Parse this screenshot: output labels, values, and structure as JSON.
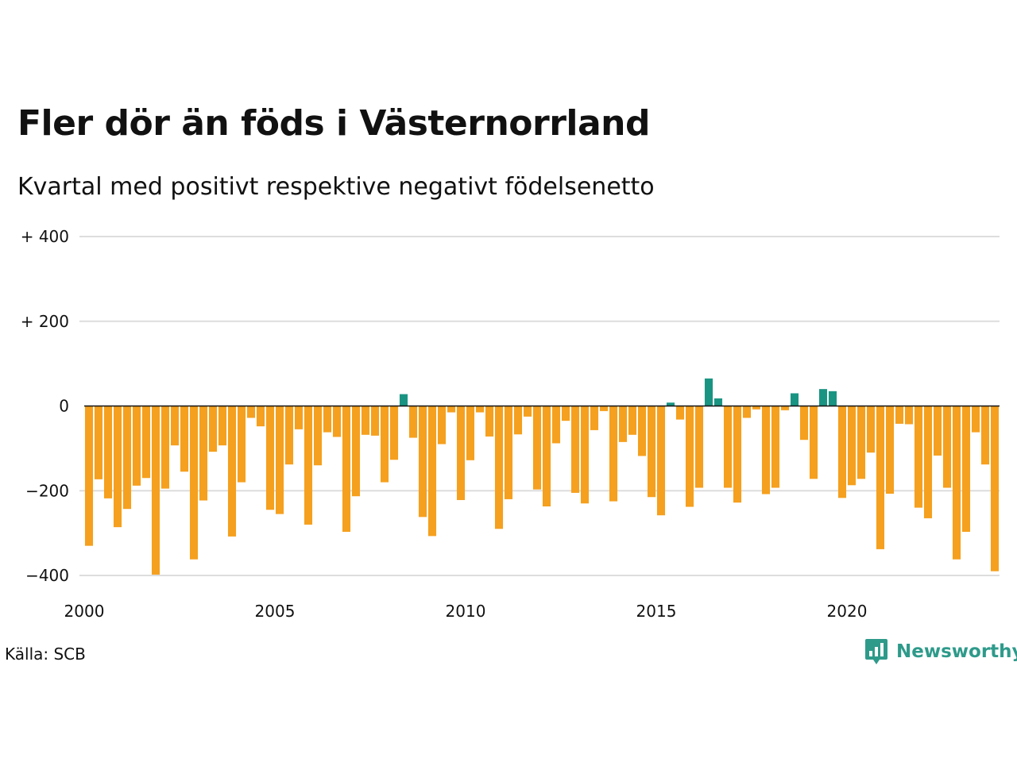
{
  "header": {
    "title": "Fler dör än föds i Västernorrland",
    "subtitle": "Kvartal med positivt respektive negativt födelsenetto"
  },
  "footer": {
    "source": "Källa: SCB",
    "brand": "Newsworthy"
  },
  "colors": {
    "positive": "#1a9482",
    "negative": "#f5a01e",
    "grid": "#dddddd",
    "zero_line": "#111111",
    "brand": "#2e9a8a"
  },
  "icons": {
    "brand": "newsworthy-logo-icon"
  },
  "chart_data": {
    "type": "bar",
    "title": "Fler dör än föds i Västernorrland",
    "subtitle": "Kvartal med positivt respektive negativt födelsenetto",
    "xlabel": "",
    "ylabel": "",
    "ylim": [
      -400,
      400
    ],
    "yticks": [
      {
        "value": 400,
        "label": "+ 400"
      },
      {
        "value": 200,
        "label": "+ 200"
      },
      {
        "value": 0,
        "label": "0"
      },
      {
        "value": -200,
        "label": "−200"
      },
      {
        "value": -400,
        "label": "−400"
      }
    ],
    "xticks": [
      "2000",
      "2005",
      "2010",
      "2015",
      "2020"
    ],
    "x_start_year": 2000,
    "quarters_per_year": 4,
    "grid": true,
    "legend": "none",
    "values": [
      -330,
      -173,
      -218,
      -286,
      -243,
      -188,
      -170,
      -398,
      -195,
      -93,
      -155,
      -362,
      -223,
      -108,
      -93,
      -308,
      -180,
      -28,
      -48,
      -245,
      -255,
      -138,
      -55,
      -280,
      -140,
      -62,
      -73,
      -297,
      -213,
      -68,
      -70,
      -180,
      -127,
      28,
      -75,
      -262,
      -307,
      -90,
      -15,
      -222,
      -128,
      -15,
      -72,
      -290,
      -220,
      -67,
      -25,
      -197,
      -237,
      -88,
      -35,
      -205,
      -230,
      -57,
      -12,
      -225,
      -85,
      -68,
      -118,
      -215,
      -258,
      8,
      -32,
      -238,
      -193,
      65,
      18,
      -193,
      -228,
      -28,
      -8,
      -208,
      -193,
      -10,
      30,
      -80,
      -172,
      40,
      35,
      -217,
      -187,
      -172,
      -110,
      -338,
      -207,
      -42,
      -43,
      -240,
      -265,
      -117,
      -193,
      -362,
      -297,
      -62,
      -138,
      -390
    ]
  }
}
